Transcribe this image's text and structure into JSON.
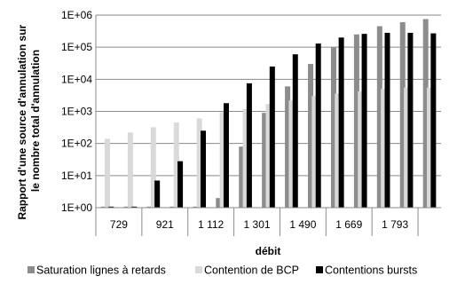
{
  "chart_data": {
    "type": "bar",
    "scale": "log",
    "ylim": [
      1,
      1000000
    ],
    "xlabel": "débit",
    "ylabel_lines": [
      "Rapport d'une source d'annulation sur",
      "le nombre total d'annulation"
    ],
    "y_ticks": [
      "1E+00",
      "1E+01",
      "1E+02",
      "1E+03",
      "1E+04",
      "1E+05",
      "1E+06"
    ],
    "x_tick_labels": [
      "729",
      "921",
      "1 112",
      "1 301",
      "1 490",
      "1 669",
      "1 793"
    ],
    "grid": true,
    "legend_position": "bottom",
    "series": [
      {
        "name": "Saturation lignes à retards",
        "color": "#8c8c8c",
        "values": [
          1,
          1,
          1,
          1,
          1,
          2,
          80,
          900,
          6000,
          30000,
          100000,
          250000,
          450000,
          600000,
          750000
        ]
      },
      {
        "name": "Contention de BCP",
        "color": "#d9d9d9",
        "values": [
          140,
          220,
          320,
          450,
          600,
          950,
          1200,
          1700,
          2200,
          3000,
          3600,
          4200,
          5000,
          5500,
          5500
        ]
      },
      {
        "name": "Contentions bursts",
        "color": "#000000",
        "values": [
          1,
          1,
          7,
          28,
          250,
          1800,
          7500,
          25000,
          60000,
          130000,
          200000,
          260000,
          280000,
          280000,
          270000
        ]
      }
    ]
  }
}
